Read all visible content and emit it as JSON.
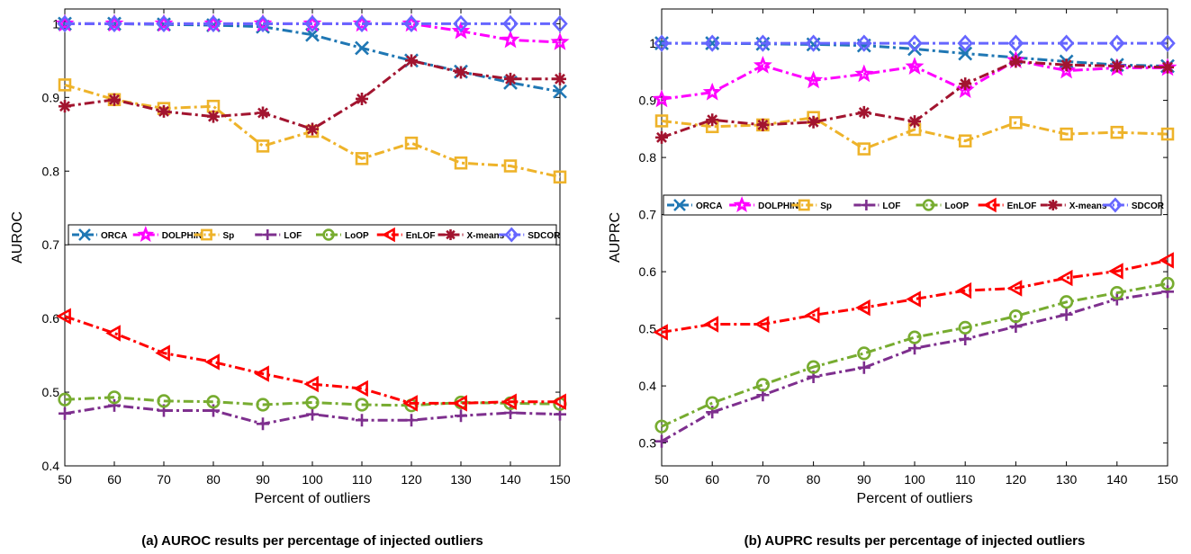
{
  "colors": {
    "ORCA": "#1f77b4",
    "DOLPHIN": "#ff00ff",
    "Sp": "#eeb32a",
    "LOF": "#7e2f8e",
    "LoOP": "#77ac30",
    "EnLOF": "#ff0000",
    "X-means": "#a2142f",
    "SDCOR": "#6666ff"
  },
  "markers": {
    "ORCA": "x",
    "DOLPHIN": "star",
    "Sp": "square",
    "LOF": "plus",
    "LoOP": "circle",
    "EnLOF": "triangle-left",
    "X-means": "asterisk",
    "SDCOR": "diamond"
  },
  "chart_data": [
    {
      "type": "line",
      "caption": "(a) AUROC results per percentage of injected outliers",
      "xlabel": "Percent of outliers",
      "ylabel": "AUROC",
      "x": [
        50,
        60,
        70,
        80,
        90,
        100,
        110,
        120,
        130,
        140,
        150
      ],
      "xlim": [
        50,
        150
      ],
      "ylim": [
        0.4,
        1.02
      ],
      "yticks": [
        0.4,
        0.5,
        0.6,
        0.7,
        0.8,
        0.9,
        1
      ],
      "ytick_labels": [
        "0.4",
        "0.5",
        "0.6",
        "0.7",
        "0.8",
        "0.9",
        "1"
      ],
      "xticks": [
        50,
        60,
        70,
        80,
        90,
        100,
        110,
        120,
        130,
        140,
        150
      ],
      "legend": "horizontal, middle",
      "series": [
        {
          "name": "ORCA",
          "values": [
            1.0,
            1.0,
            0.999,
            0.998,
            0.996,
            0.985,
            0.967,
            0.95,
            0.935,
            0.92,
            0.908
          ]
        },
        {
          "name": "DOLPHIN",
          "values": [
            1.0,
            1.0,
            1.0,
            1.0,
            1.0,
            1.0,
            1.0,
            1.0,
            0.99,
            0.978,
            0.975
          ]
        },
        {
          "name": "Sp",
          "values": [
            0.917,
            0.897,
            0.885,
            0.888,
            0.834,
            0.854,
            0.817,
            0.838,
            0.811,
            0.807,
            0.792
          ]
        },
        {
          "name": "LOF",
          "values": [
            0.471,
            0.482,
            0.475,
            0.475,
            0.457,
            0.47,
            0.462,
            0.462,
            0.468,
            0.472,
            0.47
          ]
        },
        {
          "name": "LoOP",
          "values": [
            0.49,
            0.493,
            0.488,
            0.487,
            0.483,
            0.486,
            0.483,
            0.482,
            0.486,
            0.485,
            0.484
          ]
        },
        {
          "name": "EnLOF",
          "values": [
            0.603,
            0.58,
            0.553,
            0.541,
            0.525,
            0.511,
            0.505,
            0.485,
            0.485,
            0.487,
            0.487
          ]
        },
        {
          "name": "X-means",
          "values": [
            0.888,
            0.897,
            0.881,
            0.874,
            0.879,
            0.857,
            0.898,
            0.95,
            0.934,
            0.925,
            0.925
          ]
        },
        {
          "name": "SDCOR",
          "values": [
            1.0,
            1.0,
            1.0,
            1.0,
            1.0,
            1.0,
            1.0,
            1.0,
            1.0,
            1.0,
            1.0
          ]
        }
      ]
    },
    {
      "type": "line",
      "caption": "(b) AUPRC results per percentage of injected outliers",
      "xlabel": "Percent of outliers",
      "ylabel": "AUPRC",
      "x": [
        50,
        60,
        70,
        80,
        90,
        100,
        110,
        120,
        130,
        140,
        150
      ],
      "xlim": [
        50,
        150
      ],
      "ylim": [
        0.26,
        1.06
      ],
      "yticks": [
        0.3,
        0.4,
        0.5,
        0.6,
        0.7,
        0.8,
        0.9,
        1
      ],
      "ytick_labels": [
        "0.3",
        "0.4",
        "0.5",
        "0.6",
        "0.7",
        "0.8",
        "0.9",
        "1"
      ],
      "xticks": [
        50,
        60,
        70,
        80,
        90,
        100,
        110,
        120,
        130,
        140,
        150
      ],
      "legend": "horizontal, upper-middle",
      "series": [
        {
          "name": "ORCA",
          "values": [
            1.0,
            1.0,
            0.999,
            0.998,
            0.996,
            0.99,
            0.982,
            0.975,
            0.968,
            0.962,
            0.96
          ]
        },
        {
          "name": "DOLPHIN",
          "values": [
            0.902,
            0.914,
            0.961,
            0.935,
            0.946,
            0.959,
            0.918,
            0.97,
            0.952,
            0.957,
            0.957
          ]
        },
        {
          "name": "Sp",
          "values": [
            0.864,
            0.854,
            0.857,
            0.87,
            0.815,
            0.849,
            0.829,
            0.861,
            0.841,
            0.844,
            0.841
          ]
        },
        {
          "name": "LOF",
          "values": [
            0.303,
            0.354,
            0.384,
            0.416,
            0.432,
            0.466,
            0.482,
            0.504,
            0.525,
            0.552,
            0.565
          ]
        },
        {
          "name": "LoOP",
          "values": [
            0.329,
            0.37,
            0.402,
            0.433,
            0.457,
            0.485,
            0.502,
            0.522,
            0.547,
            0.563,
            0.579
          ]
        },
        {
          "name": "EnLOF",
          "values": [
            0.494,
            0.508,
            0.508,
            0.524,
            0.537,
            0.552,
            0.567,
            0.571,
            0.589,
            0.601,
            0.62
          ]
        },
        {
          "name": "X-means",
          "values": [
            0.835,
            0.866,
            0.857,
            0.862,
            0.879,
            0.863,
            0.929,
            0.968,
            0.962,
            0.96,
            0.958
          ]
        },
        {
          "name": "SDCOR",
          "values": [
            1.0,
            1.0,
            1.0,
            1.0,
            1.0,
            1.0,
            1.0,
            1.0,
            1.0,
            1.0,
            1.0
          ]
        }
      ]
    }
  ]
}
